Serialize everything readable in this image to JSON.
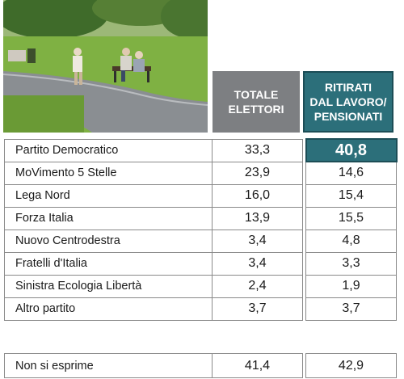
{
  "chart_data": {
    "type": "table",
    "columns": [
      "TOTALE\nELETTORI",
      "RITIRATI\nDAL LAVORO/\nPENSIONATI"
    ],
    "rows": [
      {
        "party": "Partito Democratico",
        "totale": "33,3",
        "pensionati": "40,8",
        "highlight": true
      },
      {
        "party": "MoVimento 5 Stelle",
        "totale": "23,9",
        "pensionati": "14,6"
      },
      {
        "party": "Lega Nord",
        "totale": "16,0",
        "pensionati": "15,4"
      },
      {
        "party": "Forza Italia",
        "totale": "13,9",
        "pensionati": "15,5"
      },
      {
        "party": "Nuovo Centrodestra",
        "totale": "3,4",
        "pensionati": "4,8"
      },
      {
        "party": "Fratelli d'Italia",
        "totale": "3,4",
        "pensionati": "3,3"
      },
      {
        "party": "Sinistra Ecologia Libertà",
        "totale": "2,4",
        "pensionati": "1,9"
      },
      {
        "party": "Altro partito",
        "totale": "3,7",
        "pensionati": "3,7"
      }
    ],
    "footer_row": {
      "party": "Non si esprime",
      "totale": "41,4",
      "pensionati": "42,9"
    }
  },
  "colors": {
    "header_total": "#7d7f82",
    "header_pensionati": "#2c6f7a",
    "highlight": "#2c6f7a"
  }
}
